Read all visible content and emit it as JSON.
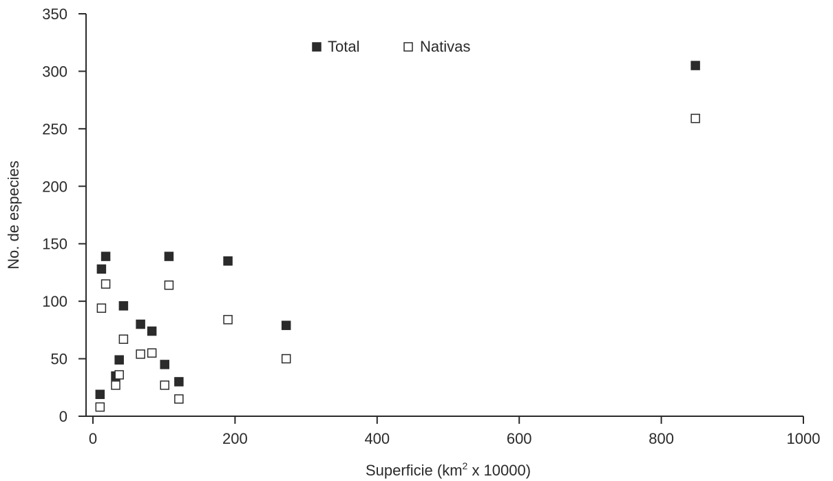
{
  "chart_data": {
    "type": "scatter",
    "title": "",
    "xlabel_prefix": "Superficie (km",
    "xlabel_sup": "2",
    "xlabel_suffix": " x 10000)",
    "ylabel": "No. de especies",
    "xlim": [
      0,
      1000
    ],
    "ylim": [
      0,
      350
    ],
    "x_ticks": [
      0,
      200,
      400,
      600,
      800,
      1000
    ],
    "y_ticks": [
      0,
      50,
      100,
      150,
      200,
      250,
      300,
      350
    ],
    "grid": false,
    "legend_position": "top-center",
    "series": [
      {
        "name": "Total",
        "marker": "filled-square",
        "color": "#2b2b2b",
        "points": [
          {
            "x": 10,
            "y": 19
          },
          {
            "x": 12,
            "y": 128
          },
          {
            "x": 18,
            "y": 139
          },
          {
            "x": 32,
            "y": 35
          },
          {
            "x": 37,
            "y": 49
          },
          {
            "x": 43,
            "y": 96
          },
          {
            "x": 67,
            "y": 80
          },
          {
            "x": 83,
            "y": 74
          },
          {
            "x": 101,
            "y": 45
          },
          {
            "x": 107,
            "y": 139
          },
          {
            "x": 121,
            "y": 30
          },
          {
            "x": 190,
            "y": 135
          },
          {
            "x": 272,
            "y": 79
          },
          {
            "x": 848,
            "y": 305
          }
        ]
      },
      {
        "name": "Nativas",
        "marker": "open-square",
        "color": "#2b2b2b",
        "points": [
          {
            "x": 10,
            "y": 8
          },
          {
            "x": 12,
            "y": 94
          },
          {
            "x": 18,
            "y": 115
          },
          {
            "x": 32,
            "y": 27
          },
          {
            "x": 37,
            "y": 36
          },
          {
            "x": 43,
            "y": 67
          },
          {
            "x": 67,
            "y": 54
          },
          {
            "x": 83,
            "y": 55
          },
          {
            "x": 101,
            "y": 27
          },
          {
            "x": 107,
            "y": 114
          },
          {
            "x": 121,
            "y": 15
          },
          {
            "x": 190,
            "y": 84
          },
          {
            "x": 272,
            "y": 50
          },
          {
            "x": 848,
            "y": 259
          }
        ]
      }
    ]
  }
}
